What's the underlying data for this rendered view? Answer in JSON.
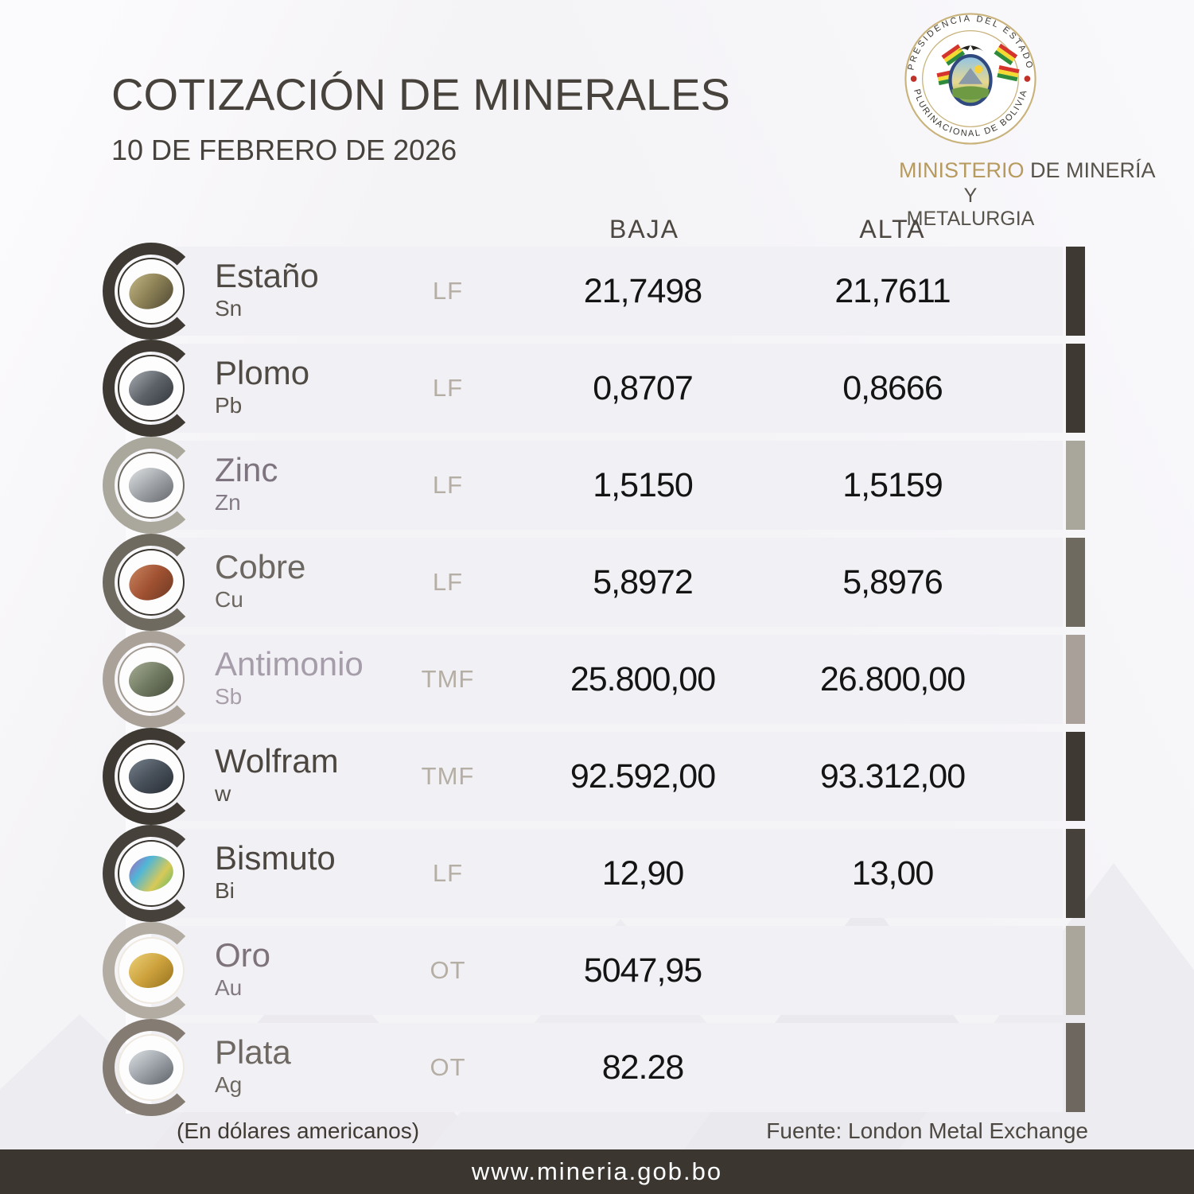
{
  "header": {
    "title": "COTIZACIÓN DE MINERALES",
    "date": "10 DE FEBRERO DE 2026"
  },
  "logo": {
    "seal_text_top": "PRESIDENCIA DEL ESTADO",
    "seal_text_bottom": "PLURINACIONAL DE BOLIVIA",
    "ministry_prefix": "MINISTERIO",
    "ministry_suffix": " DE MINERÍA",
    "ministry_line2": "Y METALURGIA",
    "gold": "#b79b5e"
  },
  "table": {
    "columns": {
      "baja": "BAJA",
      "alta": "ALTA"
    },
    "rows": [
      {
        "name": "Estaño",
        "symbol": "Sn",
        "unit": "LF",
        "baja": "21,7498",
        "alta": "21,7611",
        "accent": "#3e3a33",
        "bar": "#3e3a33",
        "ring": "#3a362f",
        "name_color": "#4f4a44",
        "symbol_color": "#5d5751",
        "mineral_colors": [
          "#c4b886",
          "#8a7f54",
          "#4e4734"
        ]
      },
      {
        "name": "Plomo",
        "symbol": "Pb",
        "unit": "LF",
        "baja": "0,8707",
        "alta": "0,8666",
        "accent": "#3e3a33",
        "bar": "#3e3a33",
        "ring": "#3a362f",
        "name_color": "#4f4a44",
        "symbol_color": "#5d5751",
        "mineral_colors": [
          "#a7adb3",
          "#5d6268",
          "#33373c"
        ]
      },
      {
        "name": "Zinc",
        "symbol": "Zn",
        "unit": "LF",
        "baja": "1,5150",
        "alta": "1,5159",
        "accent": "#aaa79c",
        "bar": "#a9a69b",
        "ring": "#6f6a62",
        "name_color": "#7d7480",
        "symbol_color": "#837a86",
        "mineral_colors": [
          "#e2e4e6",
          "#9fa3a7",
          "#63676b"
        ]
      },
      {
        "name": "Cobre",
        "symbol": "Cu",
        "unit": "LF",
        "baja": "5,8972",
        "alta": "5,8976",
        "accent": "#6f6a60",
        "bar": "#6f6a60",
        "ring": "#3a362f",
        "name_color": "#6d6761",
        "symbol_color": "#6d6761",
        "mineral_colors": [
          "#c98560",
          "#a15232",
          "#6e3a24"
        ]
      },
      {
        "name": "Antimonio",
        "symbol": "Sb",
        "unit": "TMF",
        "baja": "25.800,00",
        "alta": "26.800,00",
        "accent": "#aaa299",
        "bar": "#a9a199",
        "ring": "#a39b92",
        "name_color": "#a69daa",
        "symbol_color": "#a89fab",
        "mineral_colors": [
          "#a8ae96",
          "#717a62",
          "#474e3c"
        ]
      },
      {
        "name": "Wolfram",
        "symbol": "w",
        "unit": "TMF",
        "baja": "92.592,00",
        "alta": "93.312,00",
        "accent": "#3e3a33",
        "bar": "#3e3a33",
        "ring": "#3a362f",
        "name_color": "#4b463f",
        "symbol_color": "#544f48",
        "mineral_colors": [
          "#77828d",
          "#474f59",
          "#272c33"
        ]
      },
      {
        "name": "Bismuto",
        "symbol": "Bi",
        "unit": "LF",
        "baja": "12,90",
        "alta": "13,00",
        "accent": "#46423b",
        "bar": "#46423b",
        "ring": "#3a362f",
        "name_color": "#4b463f",
        "symbol_color": "#544f48",
        "mineral_colors": [
          "#b05ab8",
          "#4fb6d8",
          "#d8c957",
          "#56b86a"
        ]
      },
      {
        "name": "Oro",
        "symbol": "Au",
        "unit": "OT",
        "baja": "5047,95",
        "alta": "",
        "accent": "#b3aca2",
        "bar": "#aaa69c",
        "ring": "#efe9e0",
        "name_color": "#7d7379",
        "symbol_color": "#837a80",
        "mineral_colors": [
          "#ecd27a",
          "#cda23d",
          "#96721e"
        ]
      },
      {
        "name": "Plata",
        "symbol": "Ag",
        "unit": "OT",
        "baja": "82.28",
        "alta": "",
        "accent": "#847c72",
        "bar": "#6e6760",
        "ring": "#efe9e0",
        "name_color": "#6e6862",
        "symbol_color": "#6e6862",
        "mineral_colors": [
          "#dfe3e7",
          "#9ba1a7",
          "#5a6066"
        ]
      }
    ]
  },
  "footer": {
    "note": "(En dólares americanos)",
    "source": "Fuente: London Metal Exchange",
    "website": "www.mineria.gob.bo"
  },
  "colors": {
    "page_background": "#f4f3f6",
    "row_background": "#f1f0f4",
    "bottom_bar": "#3b3730",
    "title_text": "#47433c",
    "unit_text": "#b5aea4",
    "value_text": "#141414",
    "seal_gold": "#c9b37b"
  }
}
